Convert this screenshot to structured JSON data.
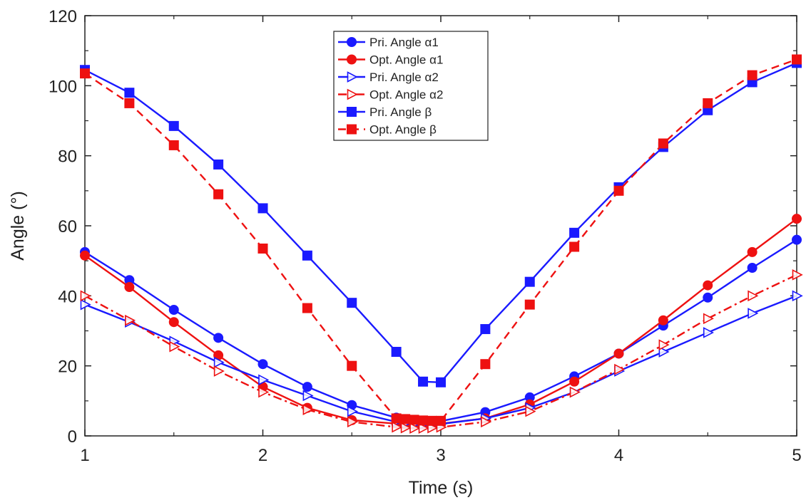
{
  "chart_data": {
    "type": "line",
    "xlabel": "Time (s)",
    "ylabel": "Angle (°)",
    "xlim": [
      1,
      5
    ],
    "ylim": [
      0,
      120
    ],
    "x_ticks": [
      "1",
      "2",
      "3",
      "4",
      "5"
    ],
    "y_ticks": [
      "0",
      "20",
      "40",
      "60",
      "80",
      "100",
      "120"
    ],
    "grid": false,
    "legend_position": "top-center",
    "series": [
      {
        "name": "Pri. Angle α1",
        "color": "#1a1aff",
        "marker": "circle",
        "dash": "solid",
        "points": [
          [
            1,
            52.5
          ],
          [
            1.25,
            44.5
          ],
          [
            1.5,
            36
          ],
          [
            1.75,
            28
          ],
          [
            2,
            20.5
          ],
          [
            2.25,
            14
          ],
          [
            2.5,
            8.8
          ],
          [
            2.75,
            5.2
          ],
          [
            2.8,
            4.7
          ],
          [
            2.85,
            4.4
          ],
          [
            2.9,
            4.2
          ],
          [
            2.95,
            4.1
          ],
          [
            3,
            4.2
          ],
          [
            3.25,
            6.8
          ],
          [
            3.5,
            11
          ],
          [
            3.75,
            17
          ],
          [
            4,
            23.5
          ],
          [
            4.25,
            31.5
          ],
          [
            4.5,
            39.5
          ],
          [
            4.75,
            48
          ],
          [
            5,
            56
          ]
        ]
      },
      {
        "name": "Opt. Angle α1",
        "color": "#ee1111",
        "marker": "circle",
        "dash": "solid",
        "points": [
          [
            1,
            51.5
          ],
          [
            1.25,
            42.5
          ],
          [
            1.5,
            32.5
          ],
          [
            1.75,
            23
          ],
          [
            2,
            14
          ],
          [
            2.25,
            8
          ],
          [
            2.5,
            4.5
          ],
          [
            2.75,
            3.5
          ],
          [
            2.8,
            3.3
          ],
          [
            2.85,
            3.2
          ],
          [
            2.9,
            3.2
          ],
          [
            2.95,
            3.3
          ],
          [
            3,
            3.5
          ],
          [
            3.25,
            5
          ],
          [
            3.5,
            9
          ],
          [
            3.75,
            15.5
          ],
          [
            4,
            23.5
          ],
          [
            4.25,
            33
          ],
          [
            4.5,
            43
          ],
          [
            4.75,
            52.5
          ],
          [
            5,
            62
          ]
        ]
      },
      {
        "name": "Pri. Angle α2",
        "color": "#1a1aff",
        "marker": "triangle-right-open",
        "dash": "solid",
        "points": [
          [
            1,
            37.5
          ],
          [
            1.25,
            32.5
          ],
          [
            1.5,
            27
          ],
          [
            1.75,
            21
          ],
          [
            2,
            16
          ],
          [
            2.25,
            11.5
          ],
          [
            2.5,
            7
          ],
          [
            2.75,
            4
          ],
          [
            2.8,
            3.6
          ],
          [
            2.85,
            3.4
          ],
          [
            2.9,
            3.3
          ],
          [
            2.95,
            3.3
          ],
          [
            3,
            3.4
          ],
          [
            3.25,
            5
          ],
          [
            3.5,
            8
          ],
          [
            3.75,
            12.5
          ],
          [
            4,
            18.5
          ],
          [
            4.25,
            24
          ],
          [
            4.5,
            29.5
          ],
          [
            4.75,
            35
          ],
          [
            5,
            40
          ]
        ]
      },
      {
        "name": "Opt. Angle α2",
        "color": "#ee1111",
        "marker": "triangle-right-open",
        "dash": "dashdot",
        "points": [
          [
            1,
            40
          ],
          [
            1.25,
            33
          ],
          [
            1.5,
            25.5
          ],
          [
            1.75,
            18.5
          ],
          [
            2,
            12.5
          ],
          [
            2.25,
            7.5
          ],
          [
            2.5,
            4
          ],
          [
            2.75,
            2.5
          ],
          [
            2.8,
            2.3
          ],
          [
            2.85,
            2.2
          ],
          [
            2.9,
            2.2
          ],
          [
            2.95,
            2.3
          ],
          [
            3,
            2.5
          ],
          [
            3.25,
            4
          ],
          [
            3.5,
            7
          ],
          [
            3.75,
            12.5
          ],
          [
            4,
            19
          ],
          [
            4.25,
            26
          ],
          [
            4.5,
            33.5
          ],
          [
            4.75,
            40
          ],
          [
            5,
            46
          ]
        ]
      },
      {
        "name": "Pri. Angle β",
        "color": "#1a1aff",
        "marker": "square",
        "dash": "solid",
        "points": [
          [
            1,
            104.5
          ],
          [
            1.25,
            98
          ],
          [
            1.5,
            88.5
          ],
          [
            1.75,
            77.5
          ],
          [
            2,
            65
          ],
          [
            2.25,
            51.5
          ],
          [
            2.5,
            38
          ],
          [
            2.75,
            24
          ],
          [
            2.9,
            15.5
          ],
          [
            3,
            15.3
          ],
          [
            3.25,
            30.5
          ],
          [
            3.5,
            44
          ],
          [
            3.75,
            58
          ],
          [
            4,
            71
          ],
          [
            4.25,
            82.5
          ],
          [
            4.5,
            93
          ],
          [
            4.75,
            101
          ],
          [
            5,
            106.5
          ]
        ]
      },
      {
        "name": "Opt. Angle β",
        "color": "#ee1111",
        "marker": "square",
        "dash": "dashed",
        "points": [
          [
            1,
            103.5
          ],
          [
            1.25,
            95
          ],
          [
            1.5,
            83
          ],
          [
            1.75,
            69
          ],
          [
            2,
            53.5
          ],
          [
            2.25,
            36.5
          ],
          [
            2.5,
            20
          ],
          [
            2.75,
            5
          ],
          [
            2.8,
            4.8
          ],
          [
            2.85,
            4.6
          ],
          [
            2.9,
            4.4
          ],
          [
            2.95,
            4.3
          ],
          [
            3,
            4.3
          ],
          [
            3.25,
            20.5
          ],
          [
            3.5,
            37.5
          ],
          [
            3.75,
            54
          ],
          [
            4,
            70
          ],
          [
            4.25,
            83.5
          ],
          [
            4.5,
            95
          ],
          [
            4.75,
            103
          ],
          [
            5,
            107.5
          ]
        ]
      }
    ]
  }
}
